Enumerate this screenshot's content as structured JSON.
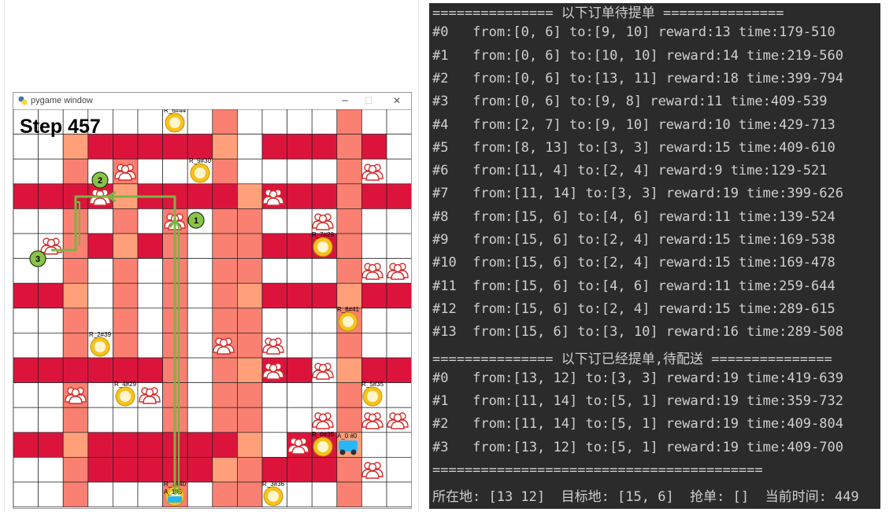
{
  "window": {
    "title": "pygame window",
    "minimize_symbol": "─",
    "maximize_symbol": "☐",
    "close_symbol": "✕"
  },
  "game": {
    "step_label": "Step 457",
    "colors": {
      "road": "#dc143c",
      "building": "#fa8072",
      "light": "#ffa07a",
      "route": "#7cb342",
      "grid": "#222222"
    },
    "route_markers": [
      "1",
      "2",
      "3"
    ],
    "restaurants": [
      {
        "label": "R_6#44"
      },
      {
        "label": "R_9#30"
      },
      {
        "label": "R_7#29"
      },
      {
        "label": "R_8#41"
      },
      {
        "label": "R_2#39"
      },
      {
        "label": "R_4#29"
      },
      {
        "label": "R_5#35"
      },
      {
        "label": "R_0#35"
      },
      {
        "label": "R_3#36"
      },
      {
        "label": "R_1#40"
      }
    ],
    "agents": [
      {
        "label": "A_0 #0"
      },
      {
        "label": "A_1#5"
      }
    ],
    "customer_icon": "customer-icon",
    "restaurant_icon": "restaurant-icon",
    "rider_icon": "scooter-icon"
  },
  "console": {
    "lines": [
      "=============== 以下订单待提单 ===============",
      "#0   from:[0, 6] to:[9, 10] reward:13 time:179-510",
      "#1   from:[0, 6] to:[10, 10] reward:14 time:219-560",
      "#2   from:[0, 6] to:[13, 11] reward:18 time:399-794",
      "#3   from:[0, 6] to:[9, 8] reward:11 time:409-539",
      "#4   from:[2, 7] to:[9, 10] reward:10 time:429-713",
      "#5   from:[8, 13] to:[3, 3] reward:15 time:409-610",
      "#6   from:[11, 4] to:[2, 4] reward:9 time:129-521",
      "#7   from:[11, 14] to:[3, 3] reward:19 time:399-626",
      "#8   from:[15, 6] to:[4, 6] reward:11 time:139-524",
      "#9   from:[15, 6] to:[2, 4] reward:15 time:169-538",
      "#10  from:[15, 6] to:[2, 4] reward:15 time:169-478",
      "#11  from:[15, 6] to:[4, 6] reward:11 time:259-644",
      "#12  from:[15, 6] to:[2, 4] reward:15 time:289-615",
      "#13  from:[15, 6] to:[3, 10] reward:16 time:289-508",
      "=============== 以下订已经提单,待配送 ===============",
      "#0   from:[13, 12] to:[3, 3] reward:19 time:419-639",
      "#1   from:[11, 14] to:[5, 1] reward:19 time:359-732",
      "#2   from:[11, 14] to:[5, 1] reward:19 time:409-804",
      "#3   from:[13, 12] to:[5, 1] reward:19 time:409-700",
      "=========================================",
      "所在地: [13 12]  目标地: [15, 6]  抢单: []  当前时间: 449"
    ]
  }
}
